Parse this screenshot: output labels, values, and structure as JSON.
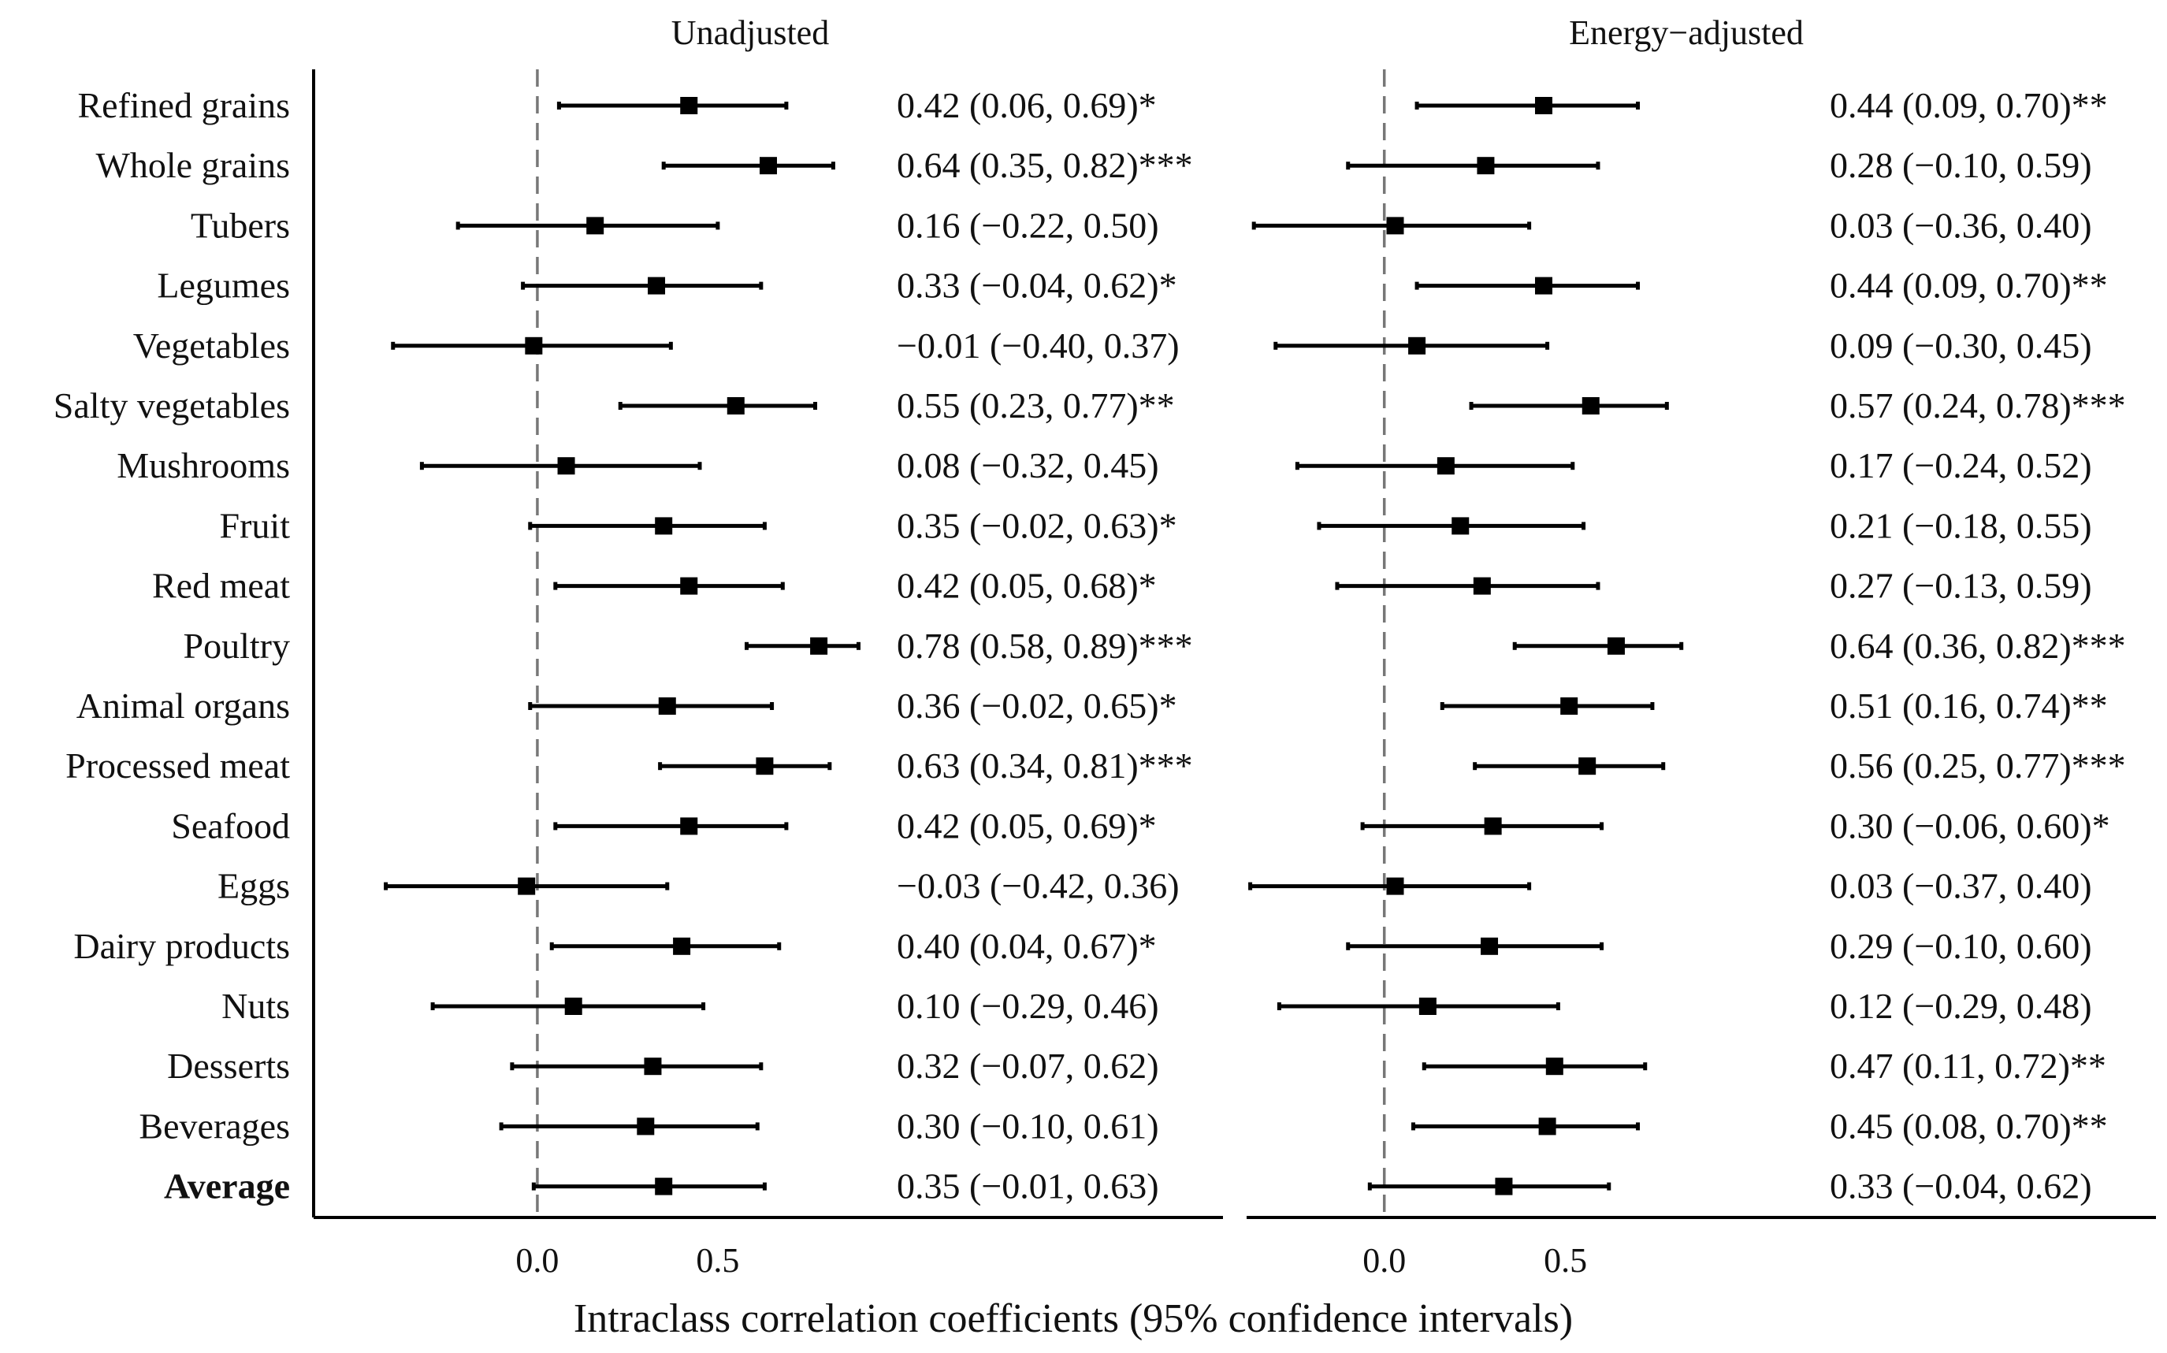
{
  "chart_data": [
    {
      "type": "forest",
      "title": "Unadjusted",
      "xlabel": "Intraclass correlation coefficients (95% confidence intervals)",
      "xticks": [
        "0.0",
        "0.5"
      ],
      "xlim": [
        -0.62,
        1.9
      ],
      "reference_line": 0.0,
      "rows": [
        {
          "label": "Refined grains",
          "bold": false,
          "est": 0.42,
          "lo": 0.06,
          "hi": 0.69,
          "text": "0.42 (0.06, 0.69)*"
        },
        {
          "label": "Whole grains",
          "bold": false,
          "est": 0.64,
          "lo": 0.35,
          "hi": 0.82,
          "text": "0.64 (0.35, 0.82)***"
        },
        {
          "label": "Tubers",
          "bold": false,
          "est": 0.16,
          "lo": -0.22,
          "hi": 0.5,
          "text": "0.16 (−0.22, 0.50)"
        },
        {
          "label": "Legumes",
          "bold": false,
          "est": 0.33,
          "lo": -0.04,
          "hi": 0.62,
          "text": "0.33 (−0.04, 0.62)*"
        },
        {
          "label": "Vegetables",
          "bold": false,
          "est": -0.01,
          "lo": -0.4,
          "hi": 0.37,
          "text": "−0.01 (−0.40, 0.37)"
        },
        {
          "label": "Salty vegetables",
          "bold": false,
          "est": 0.55,
          "lo": 0.23,
          "hi": 0.77,
          "text": "0.55 (0.23, 0.77)**"
        },
        {
          "label": "Mushrooms",
          "bold": false,
          "est": 0.08,
          "lo": -0.32,
          "hi": 0.45,
          "text": "0.08 (−0.32, 0.45)"
        },
        {
          "label": "Fruit",
          "bold": false,
          "est": 0.35,
          "lo": -0.02,
          "hi": 0.63,
          "text": "0.35 (−0.02, 0.63)*"
        },
        {
          "label": "Red meat",
          "bold": false,
          "est": 0.42,
          "lo": 0.05,
          "hi": 0.68,
          "text": "0.42 (0.05, 0.68)*"
        },
        {
          "label": "Poultry",
          "bold": false,
          "est": 0.78,
          "lo": 0.58,
          "hi": 0.89,
          "text": "0.78 (0.58, 0.89)***"
        },
        {
          "label": "Animal organs",
          "bold": false,
          "est": 0.36,
          "lo": -0.02,
          "hi": 0.65,
          "text": "0.36 (−0.02, 0.65)*"
        },
        {
          "label": "Processed meat",
          "bold": false,
          "est": 0.63,
          "lo": 0.34,
          "hi": 0.81,
          "text": "0.63 (0.34, 0.81)***"
        },
        {
          "label": "Seafood",
          "bold": false,
          "est": 0.42,
          "lo": 0.05,
          "hi": 0.69,
          "text": "0.42 (0.05, 0.69)*"
        },
        {
          "label": "Eggs",
          "bold": false,
          "est": -0.03,
          "lo": -0.42,
          "hi": 0.36,
          "text": "−0.03 (−0.42, 0.36)"
        },
        {
          "label": "Dairy products",
          "bold": false,
          "est": 0.4,
          "lo": 0.04,
          "hi": 0.67,
          "text": "0.40 (0.04, 0.67)*"
        },
        {
          "label": "Nuts",
          "bold": false,
          "est": 0.1,
          "lo": -0.29,
          "hi": 0.46,
          "text": "0.10 (−0.29, 0.46)"
        },
        {
          "label": "Desserts",
          "bold": false,
          "est": 0.32,
          "lo": -0.07,
          "hi": 0.62,
          "text": "0.32 (−0.07, 0.62)"
        },
        {
          "label": "Beverages",
          "bold": false,
          "est": 0.3,
          "lo": -0.1,
          "hi": 0.61,
          "text": "0.30 (−0.10, 0.61)"
        },
        {
          "label": "Average",
          "bold": true,
          "est": 0.35,
          "lo": -0.01,
          "hi": 0.63,
          "text": "0.35 (−0.01, 0.63)"
        }
      ]
    },
    {
      "type": "forest",
      "title": "Energy−adjusted",
      "xticks": [
        "0.0",
        "0.5"
      ],
      "xlim": [
        -0.38,
        2.13
      ],
      "reference_line": 0.0,
      "rows": [
        {
          "label": "Refined grains",
          "bold": false,
          "est": 0.44,
          "lo": 0.09,
          "hi": 0.7,
          "text": "0.44 (0.09, 0.70)**"
        },
        {
          "label": "Whole grains",
          "bold": false,
          "est": 0.28,
          "lo": -0.1,
          "hi": 0.59,
          "text": "0.28 (−0.10, 0.59)"
        },
        {
          "label": "Tubers",
          "bold": false,
          "est": 0.03,
          "lo": -0.36,
          "hi": 0.4,
          "text": "0.03 (−0.36, 0.40)"
        },
        {
          "label": "Legumes",
          "bold": false,
          "est": 0.44,
          "lo": 0.09,
          "hi": 0.7,
          "text": "0.44 (0.09, 0.70)**"
        },
        {
          "label": "Vegetables",
          "bold": false,
          "est": 0.09,
          "lo": -0.3,
          "hi": 0.45,
          "text": "0.09 (−0.30, 0.45)"
        },
        {
          "label": "Salty vegetables",
          "bold": false,
          "est": 0.57,
          "lo": 0.24,
          "hi": 0.78,
          "text": "0.57 (0.24, 0.78)***"
        },
        {
          "label": "Mushrooms",
          "bold": false,
          "est": 0.17,
          "lo": -0.24,
          "hi": 0.52,
          "text": "0.17 (−0.24, 0.52)"
        },
        {
          "label": "Fruit",
          "bold": false,
          "est": 0.21,
          "lo": -0.18,
          "hi": 0.55,
          "text": "0.21 (−0.18, 0.55)"
        },
        {
          "label": "Red meat",
          "bold": false,
          "est": 0.27,
          "lo": -0.13,
          "hi": 0.59,
          "text": "0.27 (−0.13, 0.59)"
        },
        {
          "label": "Poultry",
          "bold": false,
          "est": 0.64,
          "lo": 0.36,
          "hi": 0.82,
          "text": "0.64 (0.36, 0.82)***"
        },
        {
          "label": "Animal organs",
          "bold": false,
          "est": 0.51,
          "lo": 0.16,
          "hi": 0.74,
          "text": "0.51 (0.16, 0.74)**"
        },
        {
          "label": "Processed meat",
          "bold": false,
          "est": 0.56,
          "lo": 0.25,
          "hi": 0.77,
          "text": "0.56 (0.25, 0.77)***"
        },
        {
          "label": "Seafood",
          "bold": false,
          "est": 0.3,
          "lo": -0.06,
          "hi": 0.6,
          "text": "0.30 (−0.06, 0.60)*"
        },
        {
          "label": "Eggs",
          "bold": false,
          "est": 0.03,
          "lo": -0.37,
          "hi": 0.4,
          "text": "0.03 (−0.37, 0.40)"
        },
        {
          "label": "Dairy products",
          "bold": false,
          "est": 0.29,
          "lo": -0.1,
          "hi": 0.6,
          "text": "0.29 (−0.10, 0.60)"
        },
        {
          "label": "Nuts",
          "bold": false,
          "est": 0.12,
          "lo": -0.29,
          "hi": 0.48,
          "text": "0.12 (−0.29, 0.48)"
        },
        {
          "label": "Desserts",
          "bold": false,
          "est": 0.47,
          "lo": 0.11,
          "hi": 0.72,
          "text": "0.47 (0.11, 0.72)**"
        },
        {
          "label": "Beverages",
          "bold": false,
          "est": 0.45,
          "lo": 0.08,
          "hi": 0.7,
          "text": "0.45 (0.08, 0.70)**"
        },
        {
          "label": "Average",
          "bold": true,
          "est": 0.33,
          "lo": -0.04,
          "hi": 0.62,
          "text": "0.33 (−0.04, 0.62)"
        }
      ]
    }
  ]
}
